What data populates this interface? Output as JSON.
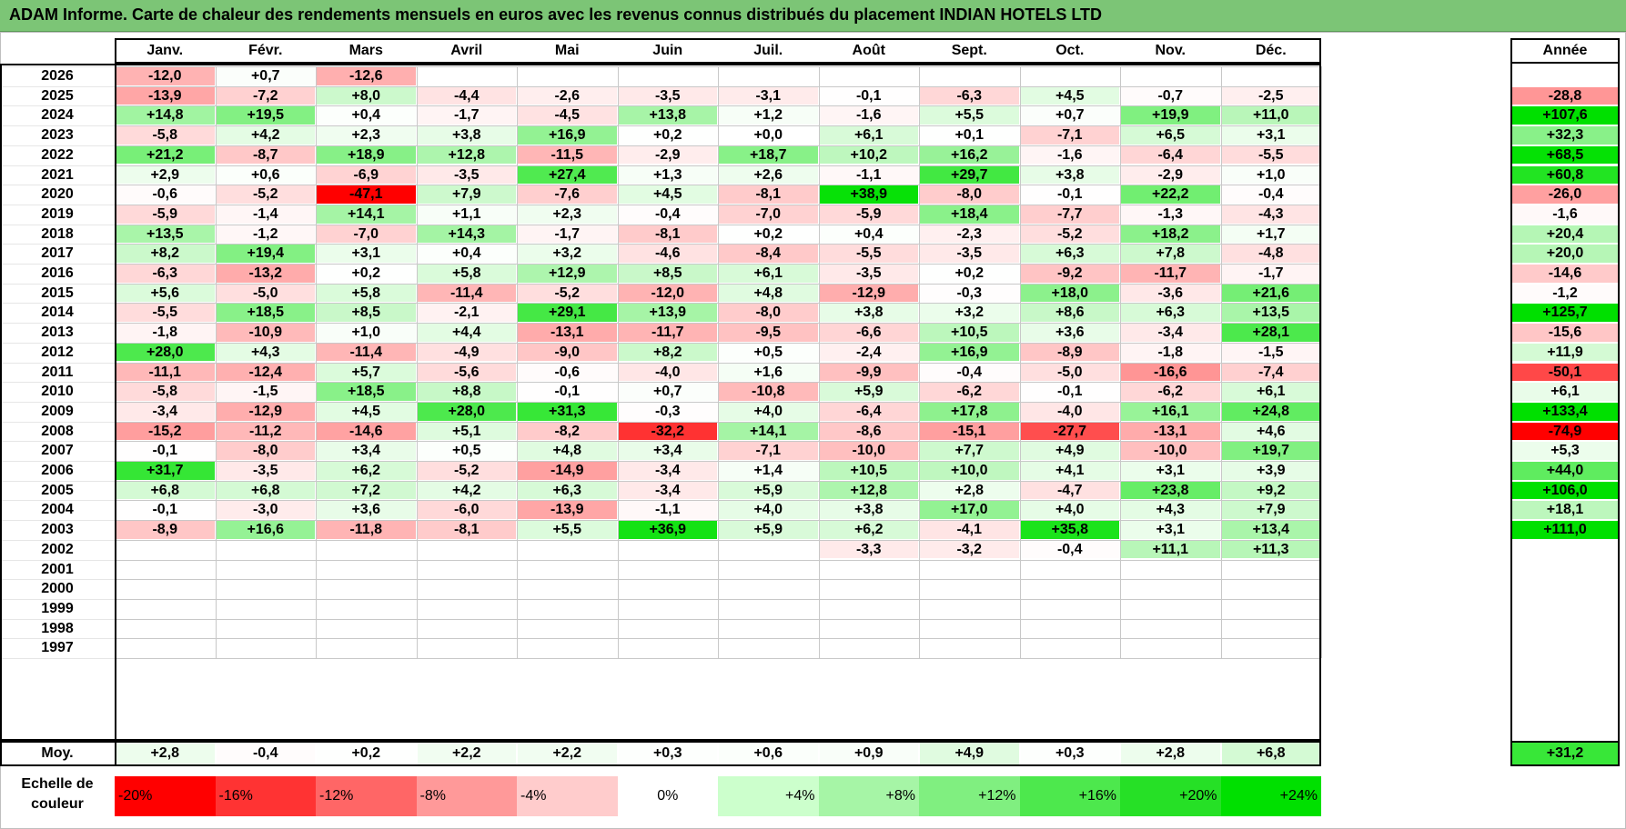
{
  "title": "ADAM Informe. Carte de chaleur des rendements mensuels en euros avec les revenus connus distribués du placement INDIAN HOTELS LTD",
  "colors": {
    "positive_max": "#00e000",
    "negative_max": "#ff0000",
    "neutral": "#ffffff",
    "title_bg": "#7cc576"
  },
  "chart_data": {
    "type": "heatmap",
    "title": "Carte de chaleur des rendements mensuels en euros",
    "columns": [
      "Janv.",
      "Févr.",
      "Mars",
      "Avril",
      "Mai",
      "Juin",
      "Juil.",
      "Août",
      "Sept.",
      "Oct.",
      "Nov.",
      "Déc."
    ],
    "year_column": "Année",
    "rows": [
      {
        "year": "2026",
        "months": [
          "-12,0",
          "+0,7",
          "-12,6",
          "",
          "",
          "",
          "",
          "",
          "",
          "",
          "",
          ""
        ],
        "annual": ""
      },
      {
        "year": "2025",
        "months": [
          "-13,9",
          "-7,2",
          "+8,0",
          "-4,4",
          "-2,6",
          "-3,5",
          "-3,1",
          "-0,1",
          "-6,3",
          "+4,5",
          "-0,7",
          "-2,5"
        ],
        "annual": "-28,8"
      },
      {
        "year": "2024",
        "months": [
          "+14,8",
          "+19,5",
          "+0,4",
          "-1,7",
          "-4,5",
          "+13,8",
          "+1,2",
          "-1,6",
          "+5,5",
          "+0,7",
          "+19,9",
          "+11,0"
        ],
        "annual": "+107,6"
      },
      {
        "year": "2023",
        "months": [
          "-5,8",
          "+4,2",
          "+2,3",
          "+3,8",
          "+16,9",
          "+0,2",
          "+0,0",
          "+6,1",
          "+0,1",
          "-7,1",
          "+6,5",
          "+3,1"
        ],
        "annual": "+32,3"
      },
      {
        "year": "2022",
        "months": [
          "+21,2",
          "-8,7",
          "+18,9",
          "+12,8",
          "-11,5",
          "-2,9",
          "+18,7",
          "+10,2",
          "+16,2",
          "-1,6",
          "-6,4",
          "-5,5"
        ],
        "annual": "+68,5"
      },
      {
        "year": "2021",
        "months": [
          "+2,9",
          "+0,6",
          "-6,9",
          "-3,5",
          "+27,4",
          "+1,3",
          "+2,6",
          "-1,1",
          "+29,7",
          "+3,8",
          "-2,9",
          "+1,0"
        ],
        "annual": "+60,8"
      },
      {
        "year": "2020",
        "months": [
          "-0,6",
          "-5,2",
          "-47,1",
          "+7,9",
          "-7,6",
          "+4,5",
          "-8,1",
          "+38,9",
          "-8,0",
          "-0,1",
          "+22,2",
          "-0,4"
        ],
        "annual": "-26,0"
      },
      {
        "year": "2019",
        "months": [
          "-5,9",
          "-1,4",
          "+14,1",
          "+1,1",
          "+2,3",
          "-0,4",
          "-7,0",
          "-5,9",
          "+18,4",
          "-7,7",
          "-1,3",
          "-4,3"
        ],
        "annual": "-1,6"
      },
      {
        "year": "2018",
        "months": [
          "+13,5",
          "-1,2",
          "-7,0",
          "+14,3",
          "-1,7",
          "-8,1",
          "+0,2",
          "+0,4",
          "-2,3",
          "-5,2",
          "+18,2",
          "+1,7"
        ],
        "annual": "+20,4"
      },
      {
        "year": "2017",
        "months": [
          "+8,2",
          "+19,4",
          "+3,1",
          "+0,4",
          "+3,2",
          "-4,6",
          "-8,4",
          "-5,5",
          "-3,5",
          "+6,3",
          "+7,8",
          "-4,8"
        ],
        "annual": "+20,0"
      },
      {
        "year": "2016",
        "months": [
          "-6,3",
          "-13,2",
          "+0,2",
          "+5,8",
          "+12,9",
          "+8,5",
          "+6,1",
          "-3,5",
          "+0,2",
          "-9,2",
          "-11,7",
          "-1,7"
        ],
        "annual": "-14,6"
      },
      {
        "year": "2015",
        "months": [
          "+5,6",
          "-5,0",
          "+5,8",
          "-11,4",
          "-5,2",
          "-12,0",
          "+4,8",
          "-12,9",
          "-0,3",
          "+18,0",
          "-3,6",
          "+21,6"
        ],
        "annual": "-1,2"
      },
      {
        "year": "2014",
        "months": [
          "-5,5",
          "+18,5",
          "+8,5",
          "-2,1",
          "+29,1",
          "+13,9",
          "-8,0",
          "+3,8",
          "+3,2",
          "+8,6",
          "+6,3",
          "+13,5"
        ],
        "annual": "+125,7"
      },
      {
        "year": "2013",
        "months": [
          "-1,8",
          "-10,9",
          "+1,0",
          "+4,4",
          "-13,1",
          "-11,7",
          "-9,5",
          "-6,6",
          "+10,5",
          "+3,6",
          "-3,4",
          "+28,1"
        ],
        "annual": "-15,6"
      },
      {
        "year": "2012",
        "months": [
          "+28,0",
          "+4,3",
          "-11,4",
          "-4,9",
          "-9,0",
          "+8,2",
          "+0,5",
          "-2,4",
          "+16,9",
          "-8,9",
          "-1,8",
          "-1,5"
        ],
        "annual": "+11,9"
      },
      {
        "year": "2011",
        "months": [
          "-11,1",
          "-12,4",
          "+5,7",
          "-5,6",
          "-0,6",
          "-4,0",
          "+1,6",
          "-9,9",
          "-0,4",
          "-5,0",
          "-16,6",
          "-7,4"
        ],
        "annual": "-50,1"
      },
      {
        "year": "2010",
        "months": [
          "-5,8",
          "-1,5",
          "+18,5",
          "+8,8",
          "-0,1",
          "+0,7",
          "-10,8",
          "+5,9",
          "-6,2",
          "-0,1",
          "-6,2",
          "+6,1"
        ],
        "annual": "+6,1"
      },
      {
        "year": "2009",
        "months": [
          "-3,4",
          "-12,9",
          "+4,5",
          "+28,0",
          "+31,3",
          "-0,3",
          "+4,0",
          "-6,4",
          "+17,8",
          "-4,0",
          "+16,1",
          "+24,8"
        ],
        "annual": "+133,4"
      },
      {
        "year": "2008",
        "months": [
          "-15,2",
          "-11,2",
          "-14,6",
          "+5,1",
          "-8,2",
          "-32,2",
          "+14,1",
          "-8,6",
          "-15,1",
          "-27,7",
          "-13,1",
          "+4,6"
        ],
        "annual": "-74,9"
      },
      {
        "year": "2007",
        "months": [
          "-0,1",
          "-8,0",
          "+3,4",
          "+0,5",
          "+4,8",
          "+3,4",
          "-7,1",
          "-10,0",
          "+7,7",
          "+4,9",
          "-10,0",
          "+19,7"
        ],
        "annual": "+5,3"
      },
      {
        "year": "2006",
        "months": [
          "+31,7",
          "-3,5",
          "+6,2",
          "-5,2",
          "-14,9",
          "-3,4",
          "+1,4",
          "+10,5",
          "+10,0",
          "+4,1",
          "+3,1",
          "+3,9"
        ],
        "annual": "+44,0"
      },
      {
        "year": "2005",
        "months": [
          "+6,8",
          "+6,8",
          "+7,2",
          "+4,2",
          "+6,3",
          "-3,4",
          "+5,9",
          "+12,8",
          "+2,8",
          "-4,7",
          "+23,8",
          "+9,2"
        ],
        "annual": "+106,0"
      },
      {
        "year": "2004",
        "months": [
          "-0,1",
          "-3,0",
          "+3,6",
          "-6,0",
          "-13,9",
          "-1,1",
          "+4,0",
          "+3,8",
          "+17,0",
          "+4,0",
          "+4,3",
          "+7,9"
        ],
        "annual": "+18,1"
      },
      {
        "year": "2003",
        "months": [
          "-8,9",
          "+16,6",
          "-11,8",
          "-8,1",
          "+5,5",
          "+36,9",
          "+5,9",
          "+6,2",
          "-4,1",
          "+35,8",
          "+3,1",
          "+13,4"
        ],
        "annual": "+111,0"
      },
      {
        "year": "2002",
        "months": [
          "",
          "",
          "",
          "",
          "",
          "",
          "",
          "-3,3",
          "-3,2",
          "-0,4",
          "+11,1",
          "+11,3"
        ],
        "annual": ""
      },
      {
        "year": "2001",
        "months": [
          "",
          "",
          "",
          "",
          "",
          "",
          "",
          "",
          "",
          "",
          "",
          ""
        ],
        "annual": ""
      },
      {
        "year": "2000",
        "months": [
          "",
          "",
          "",
          "",
          "",
          "",
          "",
          "",
          "",
          "",
          "",
          ""
        ],
        "annual": ""
      },
      {
        "year": "1999",
        "months": [
          "",
          "",
          "",
          "",
          "",
          "",
          "",
          "",
          "",
          "",
          "",
          ""
        ],
        "annual": ""
      },
      {
        "year": "1998",
        "months": [
          "",
          "",
          "",
          "",
          "",
          "",
          "",
          "",
          "",
          "",
          "",
          ""
        ],
        "annual": ""
      },
      {
        "year": "1997",
        "months": [
          "",
          "",
          "",
          "",
          "",
          "",
          "",
          "",
          "",
          "",
          "",
          ""
        ],
        "annual": ""
      }
    ],
    "average": {
      "label": "Moy.",
      "months": [
        "+2,8",
        "-0,4",
        "+0,2",
        "+2,2",
        "+2,2",
        "+0,3",
        "+0,6",
        "+0,9",
        "+4,9",
        "+0,3",
        "+2,8",
        "+6,8"
      ],
      "annual": "+31,2"
    },
    "scale": {
      "label": "Echelle de couleur",
      "values": [
        "-20%",
        "-16%",
        "-12%",
        "-8%",
        "-4%",
        "0%",
        "+4%",
        "+8%",
        "+12%",
        "+16%",
        "+20%",
        "+24%"
      ]
    }
  }
}
